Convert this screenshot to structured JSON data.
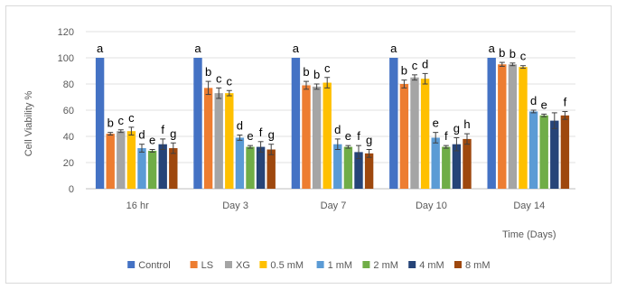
{
  "chart_data": {
    "type": "bar",
    "title": "",
    "xlabel": "Time (Days)",
    "ylabel": "Cell Viability %",
    "ylim": [
      0,
      120
    ],
    "yticks": [
      0,
      20,
      40,
      60,
      80,
      100,
      120
    ],
    "grid": "horizontal",
    "legend_position": "bottom",
    "categories": [
      "16 hr",
      "Day 3",
      "Day 7",
      "Day 10",
      "Day 14"
    ],
    "series": [
      {
        "name": "Control",
        "color": "#4472C4",
        "values": [
          100,
          100,
          100,
          100,
          100
        ],
        "errors": [
          0,
          0,
          0,
          0,
          0
        ],
        "labels": [
          "a",
          "a",
          "a",
          "a",
          "a"
        ]
      },
      {
        "name": "LS",
        "color": "#ED7D31",
        "values": [
          42,
          77,
          79,
          80,
          95
        ],
        "errors": [
          1,
          5,
          3,
          3,
          1.5
        ],
        "labels": [
          "b",
          "b",
          "b",
          "b",
          "b"
        ]
      },
      {
        "name": "XG",
        "color": "#A5A5A5",
        "values": [
          44,
          73,
          78,
          85,
          95
        ],
        "errors": [
          1,
          4,
          2,
          2,
          1
        ],
        "labels": [
          "c",
          "c",
          "b",
          "c",
          "b"
        ]
      },
      {
        "name": "0.5 mM",
        "color": "#FFC000",
        "values": [
          44,
          73,
          81,
          84,
          93
        ],
        "errors": [
          3,
          2,
          4,
          4,
          1
        ],
        "labels": [
          "c",
          "c",
          "c",
          "d",
          "c"
        ]
      },
      {
        "name": "1 mM",
        "color": "#5B9BD5",
        "values": [
          31,
          39,
          34,
          39,
          59
        ],
        "errors": [
          3,
          2,
          4,
          4,
          1
        ],
        "labels": [
          "d",
          "d",
          "d",
          "e",
          "d"
        ]
      },
      {
        "name": "2 mM",
        "color": "#70AD47",
        "values": [
          29,
          32,
          32,
          32,
          56
        ],
        "errors": [
          1,
          1,
          1,
          1,
          1
        ],
        "labels": [
          "e",
          "e",
          "e",
          "f",
          "e"
        ]
      },
      {
        "name": "4 mM",
        "color": "#264478",
        "values": [
          34,
          32,
          28,
          34,
          52
        ],
        "errors": [
          4,
          4,
          5,
          5,
          6
        ],
        "labels": [
          "f",
          "f",
          "f",
          "g",
          ""
        ]
      },
      {
        "name": "8 mM",
        "color": "#9E480E",
        "values": [
          31,
          30,
          27,
          38,
          56
        ],
        "errors": [
          4,
          4,
          3,
          4,
          3
        ],
        "labels": [
          "g",
          "g",
          "g",
          "h",
          "f"
        ]
      }
    ]
  }
}
